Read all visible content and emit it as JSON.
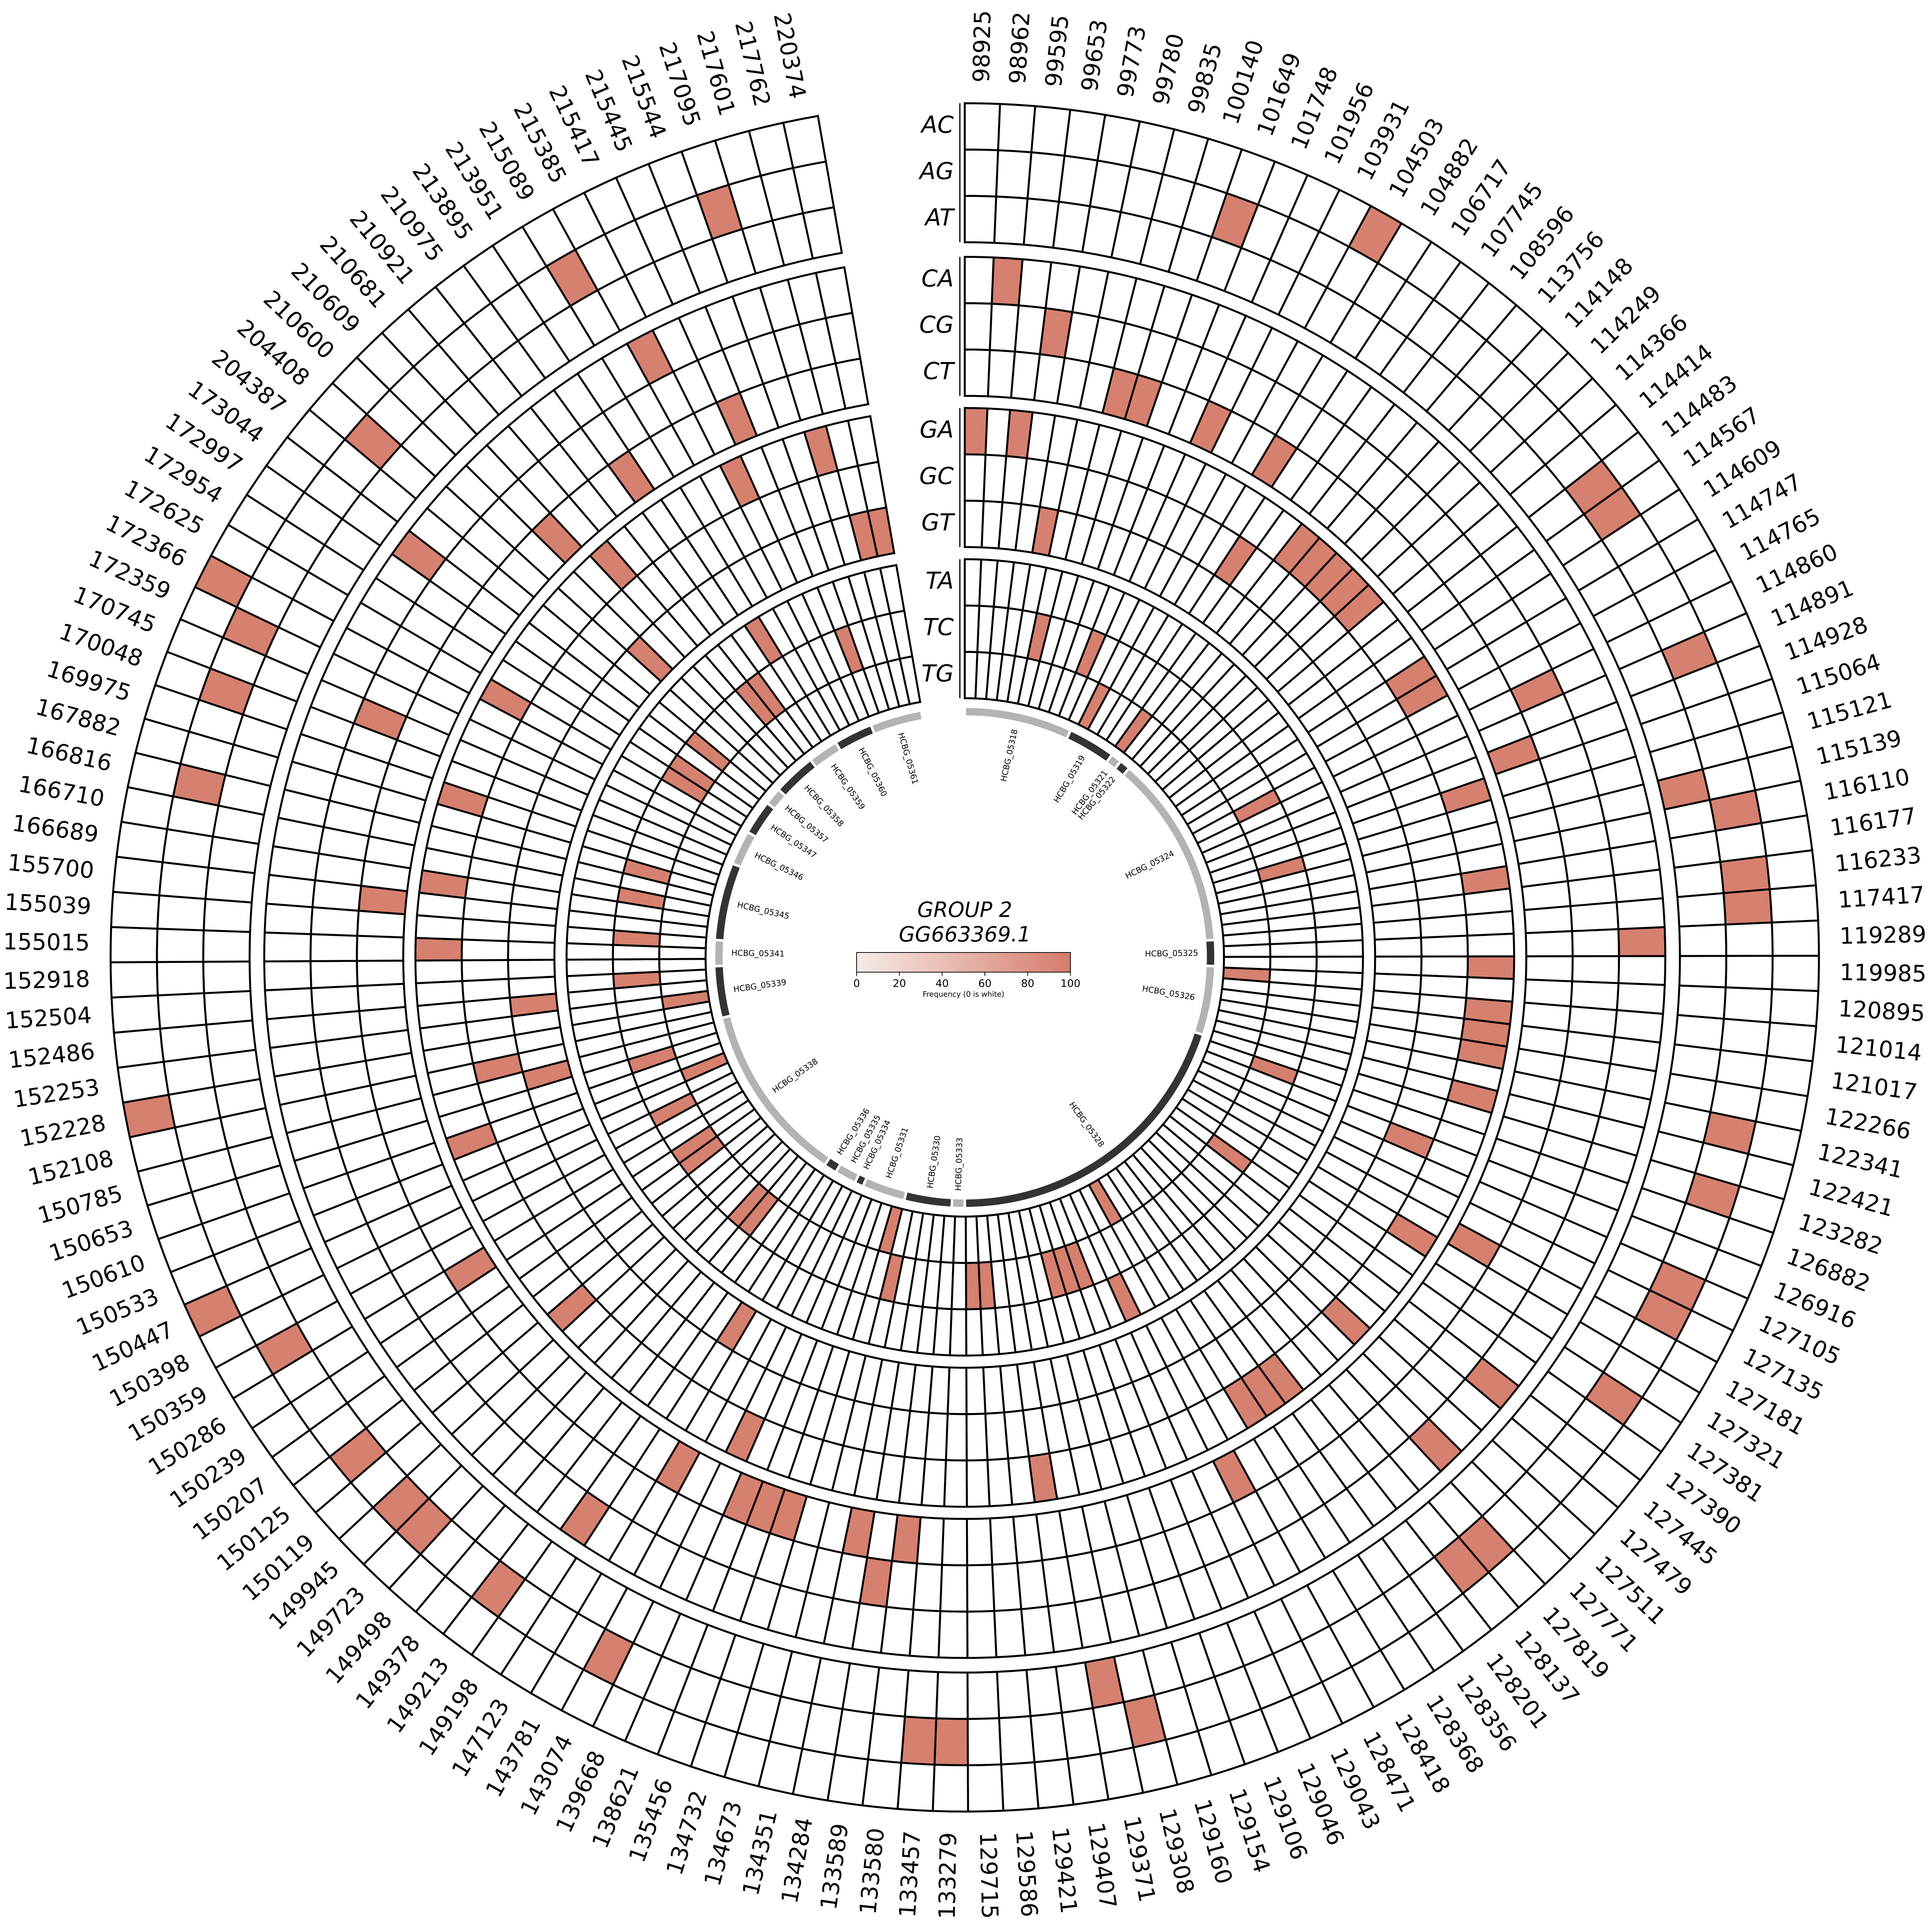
{
  "chart_data": {
    "type": "heatmap",
    "layout": "circular",
    "title": "GROUP 2",
    "subtitle": "GG663369.1",
    "colorbar": {
      "label": "Frequency (0 is white)",
      "range": [
        0,
        100
      ],
      "ticks": [
        "0",
        "20",
        "40",
        "60",
        "80",
        "100"
      ],
      "color_low": "#f7ebe8",
      "color_high": "#d47c6b"
    },
    "row_groups": [
      [
        "AC",
        "AG",
        "AT"
      ],
      [
        "CA",
        "CG",
        "CT"
      ],
      [
        "GA",
        "GC",
        "GT"
      ],
      [
        "TA",
        "TC",
        "TG"
      ]
    ],
    "positions": [
      "98925",
      "98962",
      "99595",
      "99653",
      "99773",
      "99780",
      "99835",
      "100140",
      "101649",
      "101748",
      "101956",
      "103931",
      "104503",
      "104882",
      "106717",
      "107745",
      "108596",
      "113756",
      "114148",
      "114249",
      "114366",
      "114414",
      "114483",
      "114567",
      "114609",
      "114747",
      "114765",
      "114860",
      "114891",
      "114928",
      "115064",
      "115121",
      "115139",
      "116110",
      "116177",
      "116233",
      "117417",
      "119289",
      "119985",
      "120895",
      "121014",
      "121017",
      "122266",
      "122341",
      "122421",
      "123282",
      "126882",
      "126916",
      "127105",
      "127135",
      "127181",
      "127321",
      "127381",
      "127390",
      "127445",
      "127479",
      "127511",
      "127771",
      "127819",
      "128137",
      "128201",
      "128356",
      "128368",
      "128418",
      "128471",
      "129043",
      "129046",
      "129106",
      "129154",
      "129160",
      "129308",
      "129371",
      "129407",
      "129421",
      "129586",
      "129715",
      "133279",
      "133457",
      "133580",
      "133589",
      "134284",
      "134351",
      "134673",
      "134732",
      "135456",
      "138621",
      "139668",
      "143074",
      "143781",
      "147123",
      "149198",
      "149213",
      "149378",
      "149498",
      "149723",
      "149945",
      "150119",
      "150125",
      "150207",
      "150239",
      "150286",
      "150359",
      "150398",
      "150447",
      "150533",
      "150610",
      "150653",
      "150785",
      "152108",
      "152228",
      "152253",
      "152486",
      "152504",
      "152918",
      "155015",
      "155039",
      "155700",
      "166689",
      "166710",
      "166816",
      "167882",
      "169975",
      "170048",
      "170745",
      "172359",
      "172366",
      "172625",
      "172954",
      "172997",
      "173044",
      "204387",
      "204408",
      "210600",
      "210609",
      "210681",
      "210921",
      "210975",
      "213895",
      "213951",
      "215089",
      "215385",
      "215417",
      "215445",
      "215544",
      "217095",
      "217601",
      "217762",
      "220374"
    ],
    "cells": [
      [
        "98925",
        "GA",
        100
      ],
      [
        "98962",
        "CA",
        100
      ],
      [
        "99595",
        "GA",
        100
      ],
      [
        "99653",
        "CG",
        100
      ],
      [
        "99773",
        "GT",
        100
      ],
      [
        "99780",
        "TC",
        100
      ],
      [
        "99835",
        "CT",
        100
      ],
      [
        "100140",
        "CT",
        100
      ],
      [
        "101649",
        "AG",
        100
      ],
      [
        "101748",
        "TC",
        100
      ],
      [
        "101956",
        "CT",
        100
      ],
      [
        "103931",
        "TG",
        100
      ],
      [
        "104503",
        "AC",
        100
      ],
      [
        "104882",
        "CT",
        100
      ],
      [
        "106717",
        "GC",
        100
      ],
      [
        "107745",
        "TG",
        100
      ],
      [
        "108596",
        "GA",
        100
      ],
      [
        "113756",
        "GA",
        100
      ],
      [
        "114148",
        "GA",
        100
      ],
      [
        "114249",
        "GA",
        100
      ],
      [
        "114366",
        "GA",
        100
      ],
      [
        "114483",
        "AG",
        100
      ],
      [
        "114567",
        "AG",
        100
      ],
      [
        "114609",
        "GA",
        100
      ],
      [
        "114747",
        "GA",
        100
      ],
      [
        "114765",
        "TC",
        100
      ],
      [
        "114860",
        "CG",
        100
      ],
      [
        "114891",
        "AG",
        100
      ],
      [
        "114928",
        "CT",
        100
      ],
      [
        "115064",
        "GA",
        100
      ],
      [
        "115121",
        "TC",
        100
      ],
      [
        "115139",
        "AT",
        100
      ],
      [
        "116110",
        "AG",
        100
      ],
      [
        "116177",
        "GA",
        100
      ],
      [
        "116233",
        "AG",
        100
      ],
      [
        "117417",
        "AG",
        100
      ],
      [
        "119289",
        "CA",
        100
      ],
      [
        "119985",
        "GA",
        100
      ],
      [
        "120895",
        "TG",
        100
      ],
      [
        "121014",
        "GA",
        100
      ],
      [
        "121017",
        "GA",
        100
      ],
      [
        "122266",
        "GA",
        100
      ],
      [
        "122341",
        "AG",
        100
      ],
      [
        "122421",
        "GA",
        100
      ],
      [
        "123282",
        "AG",
        100
      ],
      [
        "126882",
        "TC",
        100
      ],
      [
        "126916",
        "GC",
        100
      ],
      [
        "127105",
        "AG",
        100
      ],
      [
        "127135",
        "AG",
        100
      ],
      [
        "127181",
        "CT",
        100
      ],
      [
        "127321",
        "GA",
        100
      ],
      [
        "127381",
        "AG",
        100
      ],
      [
        "127390",
        "TC",
        100
      ],
      [
        "127445",
        "CA",
        100
      ],
      [
        "127511",
        "GA",
        100
      ],
      [
        "127771",
        "CA",
        100
      ],
      [
        "127819",
        "AG",
        100
      ],
      [
        "128137",
        "AG",
        100
      ],
      [
        "128201",
        "GA",
        100
      ],
      [
        "128356",
        "GA",
        100
      ],
      [
        "128368",
        "GA",
        100
      ],
      [
        "128418",
        "TG",
        100
      ],
      [
        "128471",
        "CT",
        100
      ],
      [
        "129043",
        "TA",
        100
      ],
      [
        "129106",
        "TC",
        100
      ],
      [
        "129154",
        "TC",
        100
      ],
      [
        "129160",
        "TC",
        100
      ],
      [
        "129308",
        "AG",
        100
      ],
      [
        "129371",
        "AT",
        100
      ],
      [
        "129407",
        "GA",
        100
      ],
      [
        "129586",
        "TC",
        100
      ],
      [
        "129715",
        "TC",
        100
      ],
      [
        "133279",
        "AG",
        100
      ],
      [
        "133457",
        "AG",
        100
      ],
      [
        "133580",
        "CT",
        100
      ],
      [
        "133589",
        "CG",
        100
      ],
      [
        "134284",
        "CT",
        100
      ],
      [
        "134351",
        "TC",
        100
      ],
      [
        "134673",
        "TG",
        100
      ],
      [
        "134732",
        "CT",
        100
      ],
      [
        "135456",
        "CT",
        100
      ],
      [
        "138621",
        "CT",
        100
      ],
      [
        "139668",
        "GA",
        100
      ],
      [
        "143074",
        "AG",
        100
      ],
      [
        "143781",
        "CT",
        100
      ],
      [
        "147123",
        "GT",
        100
      ],
      [
        "149198",
        "CA",
        100
      ],
      [
        "149213",
        "AG",
        100
      ],
      [
        "149378",
        "TC",
        100
      ],
      [
        "149498",
        "TC",
        100
      ],
      [
        "149723",
        "AG",
        100
      ],
      [
        "149945",
        "AG",
        100
      ],
      [
        "150119",
        "GA",
        100
      ],
      [
        "150125",
        "AG",
        100
      ],
      [
        "150207",
        "TC",
        100
      ],
      [
        "150239",
        "TC",
        100
      ],
      [
        "150286",
        "CT",
        100
      ],
      [
        "150359",
        "AG",
        100
      ],
      [
        "150398",
        "TC",
        100
      ],
      [
        "150447",
        "AC",
        100
      ],
      [
        "150533",
        "TG",
        100
      ],
      [
        "150610",
        "GA",
        100
      ],
      [
        "150653",
        "TC",
        100
      ],
      [
        "150785",
        "GT",
        100
      ],
      [
        "152108",
        "GC",
        100
      ],
      [
        "152228",
        "AC",
        100
      ],
      [
        "152253",
        "TG",
        100
      ],
      [
        "152486",
        "GT",
        100
      ],
      [
        "152504",
        "TC",
        100
      ],
      [
        "155015",
        "GA",
        100
      ],
      [
        "155039",
        "TC",
        100
      ],
      [
        "155700",
        "CT",
        100
      ],
      [
        "166689",
        "GA",
        100
      ],
      [
        "166710",
        "TC",
        100
      ],
      [
        "166816",
        "AG",
        100
      ],
      [
        "167882",
        "TC",
        100
      ],
      [
        "169975",
        "GA",
        100
      ],
      [
        "170048",
        "AG",
        100
      ],
      [
        "170745",
        "CG",
        100
      ],
      [
        "172359",
        "AG",
        100
      ],
      [
        "172366",
        "AC",
        100
      ],
      [
        "172625",
        "GA",
        100
      ],
      [
        "172954",
        "TC",
        100
      ],
      [
        "172997",
        "TC",
        100
      ],
      [
        "173044",
        "CA",
        100
      ],
      [
        "204387",
        "TC",
        100
      ],
      [
        "204408",
        "AG",
        100
      ],
      [
        "210600",
        "GT",
        100
      ],
      [
        "210609",
        "CT",
        100
      ],
      [
        "210681",
        "GA",
        100
      ],
      [
        "210921",
        "TC",
        100
      ],
      [
        "210975",
        "TC",
        100
      ],
      [
        "213895",
        "CT",
        100
      ],
      [
        "213951",
        "TA",
        100
      ],
      [
        "215089",
        "AG",
        100
      ],
      [
        "215385",
        "CA",
        100
      ],
      [
        "215417",
        "GA",
        100
      ],
      [
        "215445",
        "CT",
        100
      ],
      [
        "215544",
        "TC",
        100
      ],
      [
        "217095",
        "AG",
        100
      ],
      [
        "217601",
        "GA",
        100
      ],
      [
        "217762",
        "GT",
        100
      ],
      [
        "220374",
        "GT",
        100
      ]
    ],
    "genes": [
      {
        "name": "HCBG_05318",
        "shade": "light"
      },
      {
        "name": "HCBG_05319",
        "shade": "dark"
      },
      {
        "name": "HCBG_05321",
        "shade": "light"
      },
      {
        "name": "HCBG_05322",
        "shade": "dark"
      },
      {
        "name": "HCBG_05324",
        "shade": "light"
      },
      {
        "name": "HCBG_05325",
        "shade": "dark"
      },
      {
        "name": "HCBG_05326",
        "shade": "light"
      },
      {
        "name": "HCBG_05328",
        "shade": "dark"
      },
      {
        "name": "HCBG_05333",
        "shade": "light"
      },
      {
        "name": "HCBG_05330",
        "shade": "dark"
      },
      {
        "name": "HCBG_05331",
        "shade": "light"
      },
      {
        "name": "HCBG_05334",
        "shade": "dark"
      },
      {
        "name": "HCBG_05335",
        "shade": "light"
      },
      {
        "name": "HCBG_05336",
        "shade": "dark"
      },
      {
        "name": "HCBG_05338",
        "shade": "light"
      },
      {
        "name": "HCBG_05339",
        "shade": "dark"
      },
      {
        "name": "HCBG_05341",
        "shade": "light"
      },
      {
        "name": "HCBG_05345",
        "shade": "dark"
      },
      {
        "name": "HCBG_05346",
        "shade": "light"
      },
      {
        "name": "HCBG_05347",
        "shade": "dark"
      },
      {
        "name": "HCBG_05357",
        "shade": "light"
      },
      {
        "name": "HCBG_05358",
        "shade": "dark"
      },
      {
        "name": "HCBG_05359",
        "shade": "light"
      },
      {
        "name": "HCBG_05360",
        "shade": "dark"
      },
      {
        "name": "HCBG_05361",
        "shade": "light"
      }
    ],
    "colors": {
      "fill": "#d6806f",
      "empty": "#ffffff",
      "gene_light": "#b3b3b3",
      "gene_dark": "#333333"
    }
  }
}
